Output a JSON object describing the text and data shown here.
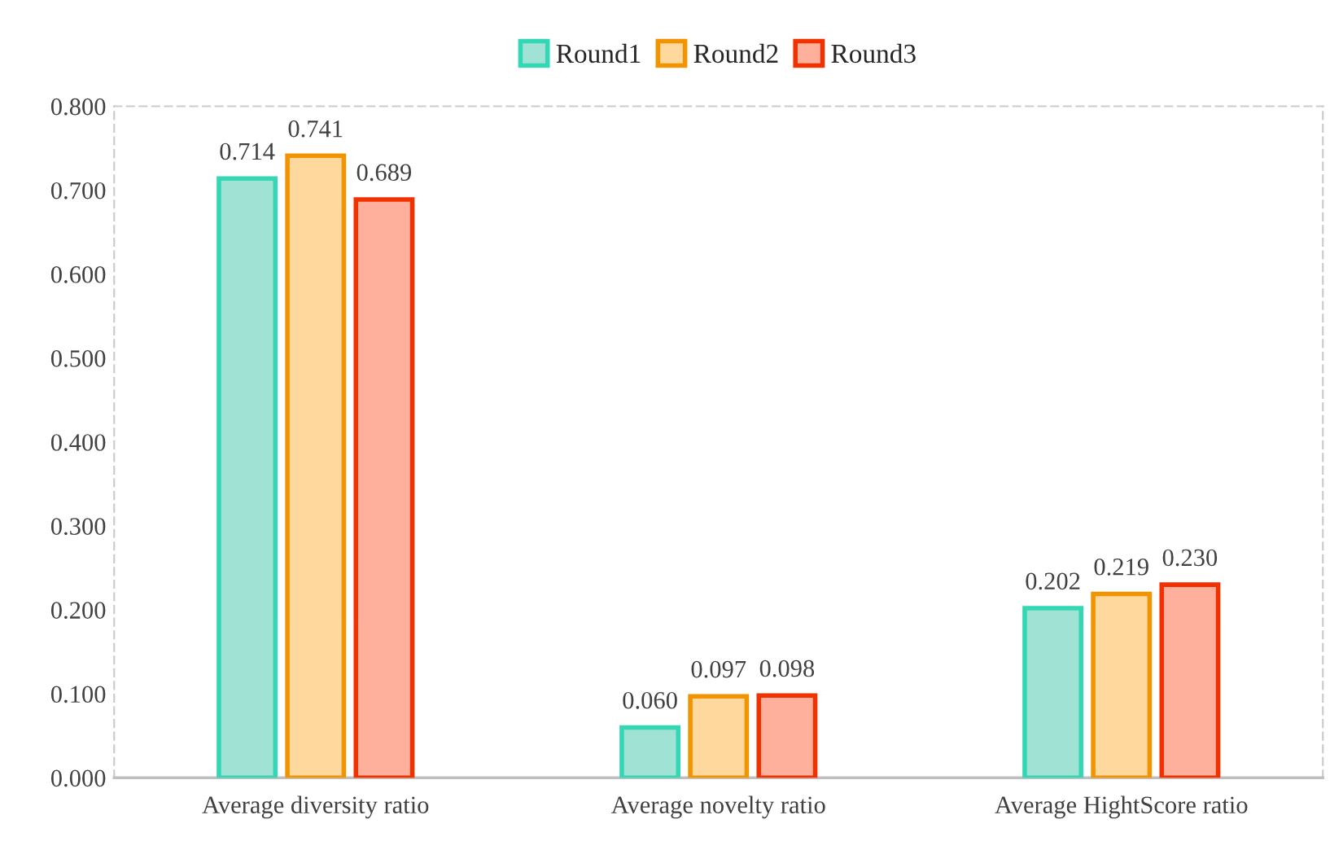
{
  "chart_data": {
    "type": "bar",
    "categories": [
      "Average diversity ratio",
      "Average novelty ratio",
      "Average HightScore ratio"
    ],
    "series": [
      {
        "name": "Round1",
        "color": "#a0e2d4",
        "values": [
          0.714,
          0.06,
          0.202
        ],
        "value_labels": [
          "0.714",
          "0.060",
          "0.202"
        ]
      },
      {
        "name": "Round2",
        "color": "#fed89c",
        "values": [
          0.741,
          0.097,
          0.219
        ],
        "value_labels": [
          "0.741",
          "0.097",
          "0.219"
        ]
      },
      {
        "name": "Round3",
        "color": "#feb09c",
        "values": [
          0.689,
          0.098,
          0.23
        ],
        "value_labels": [
          "0.689",
          "0.098",
          "0.230"
        ]
      }
    ],
    "ylim": [
      0,
      0.8
    ],
    "yticks": [
      {
        "value": 0,
        "label": "0.000"
      },
      {
        "value": 0.1,
        "label": "0.100"
      },
      {
        "value": 0.2,
        "label": "0.200"
      },
      {
        "value": 0.3,
        "label": "0.300"
      },
      {
        "value": 0.4,
        "label": "0.400"
      },
      {
        "value": 0.5,
        "label": "0.500"
      },
      {
        "value": 0.6,
        "label": "0.600"
      },
      {
        "value": 0.7,
        "label": "0.700"
      },
      {
        "value": 0.8,
        "label": "0.800"
      }
    ],
    "grid": false,
    "legend": "top"
  }
}
